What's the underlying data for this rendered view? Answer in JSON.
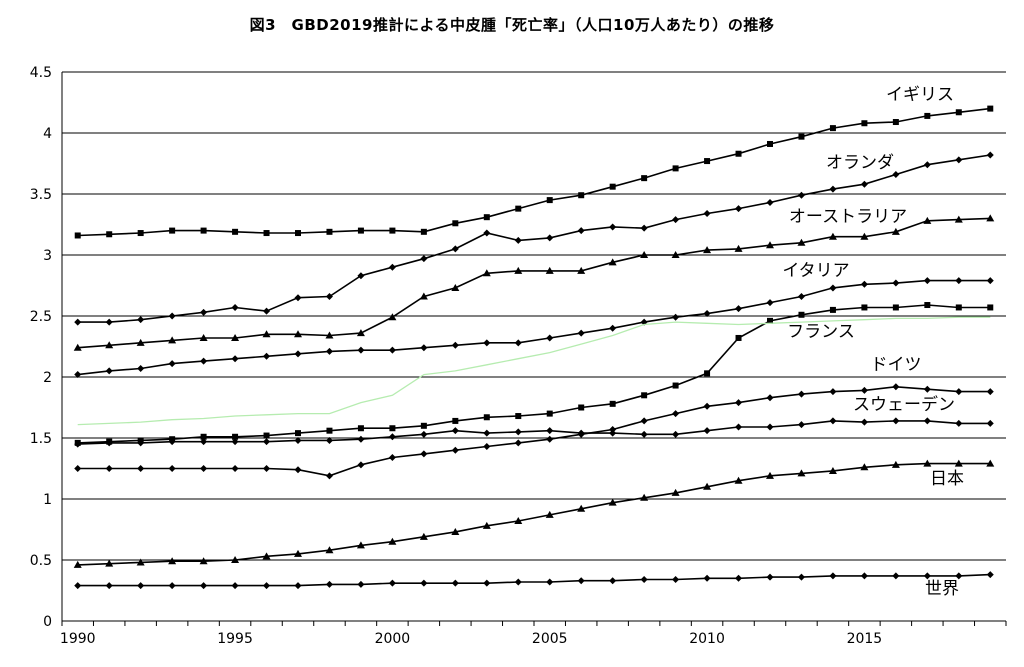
{
  "chart_data": {
    "type": "line",
    "title": "図3　GBD2019推計による中皮腫「死亡率」（人口10万人あたり）の推移",
    "xlabel": "",
    "ylabel": "",
    "xlim": [
      1990,
      2019
    ],
    "ylim": [
      0,
      4.5
    ],
    "x_ticks": [
      "1990",
      "1995",
      "2000",
      "2005",
      "2010",
      "2015"
    ],
    "y_ticks": [
      "0",
      "0.5",
      "1",
      "1.5",
      "2",
      "2.5",
      "3",
      "3.5",
      "4",
      "4.5"
    ],
    "grid": "horizontal",
    "x": [
      1990,
      1991,
      1992,
      1993,
      1994,
      1995,
      1996,
      1997,
      1998,
      1999,
      2000,
      2001,
      2002,
      2003,
      2004,
      2005,
      2006,
      2007,
      2008,
      2009,
      2010,
      2011,
      2012,
      2013,
      2014,
      2015,
      2016,
      2017,
      2018,
      2019
    ],
    "series": [
      {
        "name": "イギリス",
        "color": "#000000",
        "marker": "square",
        "values": [
          3.16,
          3.17,
          3.18,
          3.2,
          3.2,
          3.19,
          3.18,
          3.18,
          3.19,
          3.2,
          3.2,
          3.19,
          3.26,
          3.31,
          3.38,
          3.45,
          3.49,
          3.56,
          3.63,
          3.71,
          3.77,
          3.83,
          3.91,
          3.97,
          4.04,
          4.08,
          4.09,
          4.14,
          4.17,
          4.2
        ]
      },
      {
        "name": "オランダ",
        "color": "#000000",
        "marker": "diamond",
        "values": [
          2.45,
          2.45,
          2.47,
          2.5,
          2.53,
          2.57,
          2.54,
          2.65,
          2.66,
          2.83,
          2.9,
          2.97,
          3.05,
          3.18,
          3.12,
          3.14,
          3.2,
          3.23,
          3.22,
          3.29,
          3.34,
          3.38,
          3.43,
          3.49,
          3.54,
          3.58,
          3.66,
          3.74,
          3.78,
          3.82
        ]
      },
      {
        "name": "オーストラリア",
        "color": "#000000",
        "marker": "triangle",
        "values": [
          2.24,
          2.26,
          2.28,
          2.3,
          2.32,
          2.32,
          2.35,
          2.35,
          2.34,
          2.36,
          2.49,
          2.66,
          2.73,
          2.85,
          2.87,
          2.87,
          2.87,
          2.94,
          3.0,
          3.0,
          3.04,
          3.05,
          3.08,
          3.1,
          3.15,
          3.15,
          3.19,
          3.28,
          3.29,
          3.3
        ]
      },
      {
        "name": "イタリア",
        "color": "#000000",
        "marker": "diamond",
        "values": [
          2.02,
          2.05,
          2.07,
          2.11,
          2.13,
          2.15,
          2.17,
          2.19,
          2.21,
          2.22,
          2.22,
          2.24,
          2.26,
          2.28,
          2.28,
          2.32,
          2.36,
          2.4,
          2.45,
          2.49,
          2.52,
          2.56,
          2.61,
          2.66,
          2.73,
          2.76,
          2.77,
          2.79,
          2.79,
          2.79
        ]
      },
      {
        "name": "フランス",
        "color": "#000000",
        "marker": "square",
        "values": [
          1.46,
          1.47,
          1.48,
          1.49,
          1.51,
          1.51,
          1.52,
          1.54,
          1.56,
          1.58,
          1.58,
          1.6,
          1.64,
          1.67,
          1.68,
          1.7,
          1.75,
          1.78,
          1.85,
          1.93,
          2.03,
          2.32,
          2.46,
          2.51,
          2.55,
          2.57,
          2.57,
          2.59,
          2.57,
          2.57
        ]
      },
      {
        "name": "ドイツ",
        "color": "#000000",
        "marker": "diamond",
        "values": [
          1.45,
          1.46,
          1.46,
          1.47,
          1.47,
          1.47,
          1.47,
          1.48,
          1.48,
          1.49,
          1.51,
          1.53,
          1.56,
          1.54,
          1.55,
          1.56,
          1.54,
          1.54,
          1.53,
          1.53,
          1.56,
          1.59,
          1.59,
          1.61,
          1.64,
          1.63,
          1.64,
          1.64,
          1.62,
          1.62
        ]
      },
      {
        "name": "スウェーデン",
        "color": "#000000",
        "marker": "diamond",
        "values": [
          1.25,
          1.25,
          1.25,
          1.25,
          1.25,
          1.25,
          1.25,
          1.24,
          1.19,
          1.28,
          1.34,
          1.37,
          1.4,
          1.43,
          1.46,
          1.49,
          1.53,
          1.57,
          1.64,
          1.7,
          1.76,
          1.79,
          1.83,
          1.86,
          1.88,
          1.89,
          1.92,
          1.9,
          1.88,
          1.88
        ]
      },
      {
        "name": "日本",
        "color": "#000000",
        "marker": "triangle",
        "values": [
          0.46,
          0.47,
          0.48,
          0.49,
          0.49,
          0.5,
          0.53,
          0.55,
          0.58,
          0.62,
          0.65,
          0.69,
          0.73,
          0.78,
          0.82,
          0.87,
          0.92,
          0.97,
          1.01,
          1.05,
          1.1,
          1.15,
          1.19,
          1.21,
          1.23,
          1.26,
          1.28,
          1.29,
          1.29,
          1.29
        ]
      },
      {
        "name": "世界",
        "color": "#000000",
        "marker": "diamond",
        "values": [
          0.29,
          0.29,
          0.29,
          0.29,
          0.29,
          0.29,
          0.29,
          0.29,
          0.3,
          0.3,
          0.31,
          0.31,
          0.31,
          0.31,
          0.32,
          0.32,
          0.33,
          0.33,
          0.34,
          0.34,
          0.35,
          0.35,
          0.36,
          0.36,
          0.37,
          0.37,
          0.37,
          0.37,
          0.37,
          0.38
        ]
      },
      {
        "name": "",
        "color": "#b6ecb0",
        "marker": "none",
        "values": [
          1.61,
          1.62,
          1.63,
          1.65,
          1.66,
          1.68,
          1.69,
          1.7,
          1.7,
          1.79,
          1.85,
          2.02,
          2.05,
          2.1,
          2.15,
          2.2,
          2.27,
          2.34,
          2.43,
          2.45,
          2.44,
          2.43,
          2.44,
          2.45,
          2.46,
          2.47,
          2.48,
          2.48,
          2.49,
          2.49
        ]
      }
    ]
  }
}
